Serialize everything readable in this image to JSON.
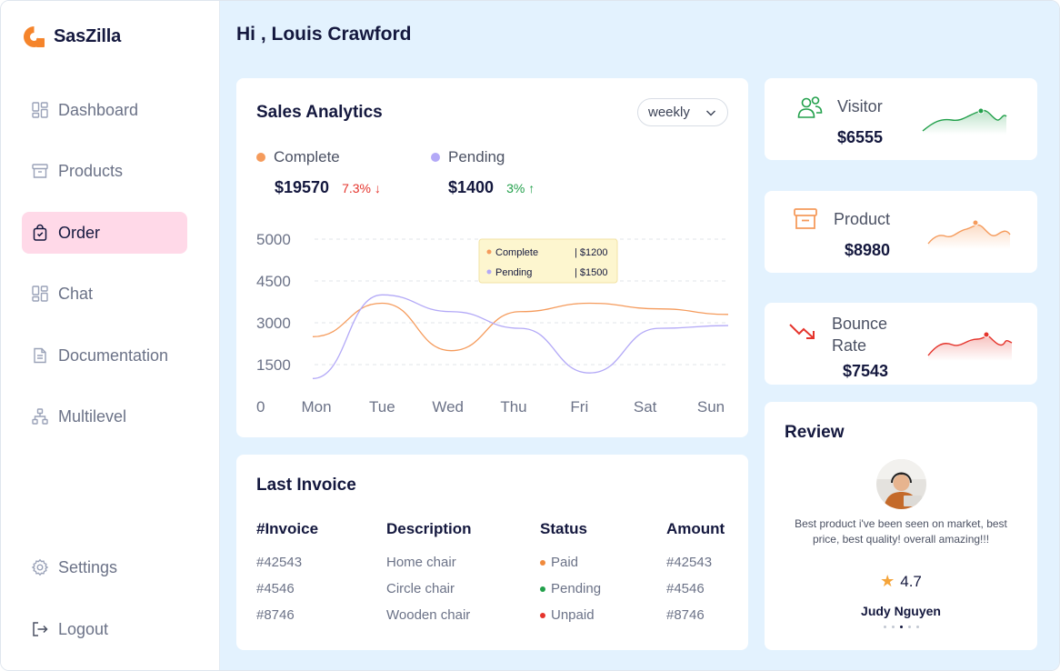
{
  "brand": {
    "name": "SasZilla"
  },
  "nav": {
    "items": [
      {
        "label": "Dashboard",
        "icon": "dashboard-icon"
      },
      {
        "label": "Products",
        "icon": "archive-icon"
      },
      {
        "label": "Order",
        "icon": "shopping-bag-icon"
      },
      {
        "label": "Chat",
        "icon": "dashboard-icon"
      },
      {
        "label": "Documentation",
        "icon": "document-icon"
      },
      {
        "label": "Multilevel",
        "icon": "hierarchy-icon"
      }
    ],
    "active": "Order",
    "settings_label": "Settings",
    "logout_label": "Logout"
  },
  "header": {
    "greeting": "Hi , Louis Crawford"
  },
  "sales": {
    "title": "Sales Analytics",
    "period": "weekly",
    "complete": {
      "label": "Complete",
      "value": "$19570",
      "change": "7.3%",
      "direction": "down",
      "color": "#f59b5c"
    },
    "pending": {
      "label": "Pending",
      "value": "$1400",
      "change": "3%",
      "direction": "up",
      "color": "#b3a9f7"
    },
    "tooltip": {
      "complete_label": "Complete",
      "complete_value": "| $1200",
      "pending_label": "Pending",
      "pending_value": "| $1500"
    }
  },
  "chart_data": {
    "type": "line",
    "categories": [
      "Mon",
      "Tue",
      "Wed",
      "Thu",
      "Fri",
      "Sat",
      "Sun"
    ],
    "y_ticks": [
      "5000",
      "4500",
      "3000",
      "1500",
      "0"
    ],
    "series": [
      {
        "name": "Complete",
        "color": "#f59b5c",
        "values": [
          2500,
          3700,
          2000,
          3400,
          3700,
          3500,
          3300
        ]
      },
      {
        "name": "Pending",
        "color": "#b3a9f7",
        "values": [
          1000,
          4000,
          3400,
          2800,
          1200,
          2800,
          2900
        ]
      }
    ],
    "grid": true
  },
  "invoice": {
    "title": "Last Invoice",
    "columns": [
      "#Invoice",
      "Description",
      "Status",
      "Amount"
    ],
    "rows": [
      {
        "invoice": "#42543",
        "description": "Home chair",
        "status": "Paid",
        "status_color": "#f08a3c",
        "amount": "#42543"
      },
      {
        "invoice": "#4546",
        "description": "Circle chair",
        "status": "Pending",
        "status_color": "#22a04b",
        "amount": "#4546"
      },
      {
        "invoice": "#8746",
        "description": "Wooden chair",
        "status": "Unpaid",
        "status_color": "#e5342c",
        "amount": "#8746"
      }
    ]
  },
  "stats": [
    {
      "label": "Visitor",
      "value": "$6555",
      "icon": "users-icon",
      "color": "#22a04b"
    },
    {
      "label": "Product",
      "value": "$8980",
      "icon": "archive-icon",
      "color": "#f59b5c"
    },
    {
      "label": "Bounce Rate",
      "label_line1": "Bounce",
      "label_line2": "Rate",
      "value": "$7543",
      "icon": "trend-down-icon",
      "color": "#e5342c"
    }
  ],
  "review": {
    "title": "Review",
    "text": "Best product i've been seen on market, best price, best quality! overall amazing!!!",
    "rating": "4.7",
    "name": "Judy Nguyen"
  }
}
